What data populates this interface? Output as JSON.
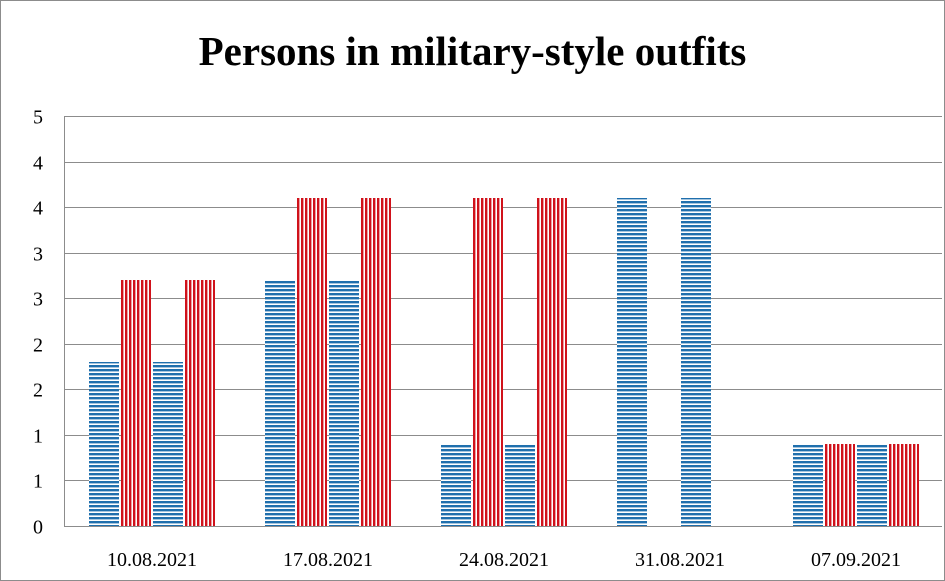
{
  "chart_data": {
    "type": "bar",
    "title": "Persons in military-style outfits",
    "categories": [
      "10.08.2021",
      "17.08.2021",
      "24.08.2021",
      "31.08.2021",
      "07.09.2021"
    ],
    "series": [
      {
        "values": [
          2,
          3,
          1,
          4,
          1
        ],
        "color": "#1f6fad",
        "pattern": "horizontal-lines"
      },
      {
        "values": [
          3,
          4,
          4,
          0,
          1
        ],
        "color": "#d0121b",
        "pattern": "vertical-lines"
      },
      {
        "values": [
          2,
          3,
          1,
          4,
          1
        ],
        "color": "#1f6fad",
        "pattern": "horizontal-lines"
      },
      {
        "values": [
          3,
          4,
          4,
          0,
          1
        ],
        "color": "#d0121b",
        "pattern": "vertical-lines"
      }
    ],
    "y_tick_labels": [
      "0",
      "1",
      "1",
      "2",
      "2",
      "3",
      "3",
      "4",
      "4",
      "5"
    ],
    "ylim": [
      0,
      5
    ],
    "grid": true,
    "legend": "none",
    "xlabel": "",
    "ylabel": ""
  }
}
